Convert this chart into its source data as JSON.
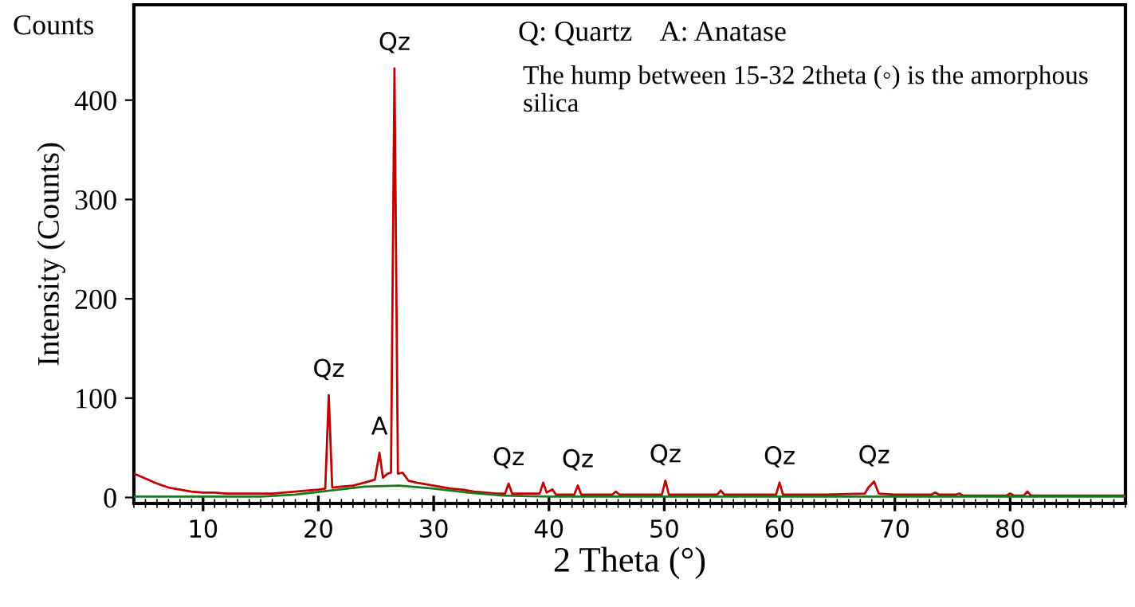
{
  "chart_data": {
    "type": "line",
    "xlabel": "2 Theta (°)",
    "ylabel": "Intensity (Counts)",
    "xlim": [
      4,
      90
    ],
    "ylim": [
      -6,
      496
    ],
    "xticks": [
      10,
      20,
      30,
      40,
      50,
      60,
      70,
      80
    ],
    "yticks": [
      0,
      100,
      200,
      300,
      400
    ],
    "grid": false,
    "marker": "none",
    "line_style": "solid",
    "series": [
      {
        "color": "#c00000",
        "x": [
          4,
          5,
          6,
          7,
          8,
          9,
          10,
          11,
          12,
          13,
          14,
          15,
          16,
          17,
          18,
          19,
          20,
          20.6,
          20.9,
          21.2,
          22,
          23,
          24,
          24.9,
          25.3,
          25.6,
          26,
          26.3,
          26.6,
          26.9,
          27.3,
          27.5,
          27.8,
          28.5,
          29.5,
          30.5,
          31.5,
          32.5,
          33.5,
          34.5,
          35.5,
          36.2,
          36.5,
          36.8,
          38,
          39.2,
          39.5,
          39.8,
          40.3,
          40.6,
          42.2,
          42.5,
          42.8,
          45.5,
          45.8,
          46.1,
          49.8,
          50.1,
          50.4,
          52,
          54.6,
          54.9,
          55.2,
          57,
          59.7,
          60,
          60.3,
          64,
          67.4,
          67.7,
          68.2,
          68.6,
          70,
          73.2,
          73.5,
          73.8,
          75.3,
          75.6,
          75.9,
          79.7,
          80,
          80.3,
          81.2,
          81.5,
          81.8,
          85,
          90
        ],
        "values": [
          24,
          19,
          14,
          10,
          8,
          6,
          5,
          5,
          4,
          4,
          4,
          4,
          4,
          5,
          6,
          7,
          8,
          9,
          103,
          10,
          11,
          12,
          15,
          18,
          45,
          20,
          24,
          25,
          432,
          24,
          25,
          22,
          17,
          15,
          13,
          11,
          9,
          8,
          6,
          5,
          4,
          4,
          14,
          4,
          4,
          4,
          15,
          5,
          8,
          3,
          3,
          12,
          3,
          3,
          6,
          3,
          3,
          17,
          3,
          3,
          3,
          7,
          3,
          3,
          3,
          15,
          3,
          3,
          4,
          10,
          16,
          4,
          3,
          3,
          5,
          3,
          3,
          4,
          2,
          2,
          4,
          2,
          2,
          6,
          2,
          2,
          2
        ]
      },
      {
        "color": "#1a7a1a",
        "x": [
          4,
          10,
          15,
          18,
          21,
          24,
          27,
          30,
          33,
          36,
          40,
          50,
          60,
          70,
          80,
          90
        ],
        "values": [
          1,
          1,
          1,
          3,
          7,
          11,
          12,
          9,
          5,
          2,
          1,
          1,
          1,
          1,
          1,
          1
        ]
      }
    ],
    "annotations": [
      {
        "text": "Qz",
        "x": 26.6,
        "y": 432
      },
      {
        "text": "Qz",
        "x": 20.9,
        "y": 103
      },
      {
        "text": "A",
        "x": 25.3,
        "y": 45
      },
      {
        "text": "Qz",
        "x": 36.5,
        "y": 14
      },
      {
        "text": "Qz",
        "x": 42.5,
        "y": 12
      },
      {
        "text": "Qz",
        "x": 50.1,
        "y": 17
      },
      {
        "text": "Qz",
        "x": 60,
        "y": 15
      },
      {
        "text": "Qz",
        "x": 68.2,
        "y": 16
      },
      "Counts",
      "Q: Quartz    A: Anatase",
      "The hump between 15-32 2theta (◦) is the amorphous silica"
    ]
  }
}
